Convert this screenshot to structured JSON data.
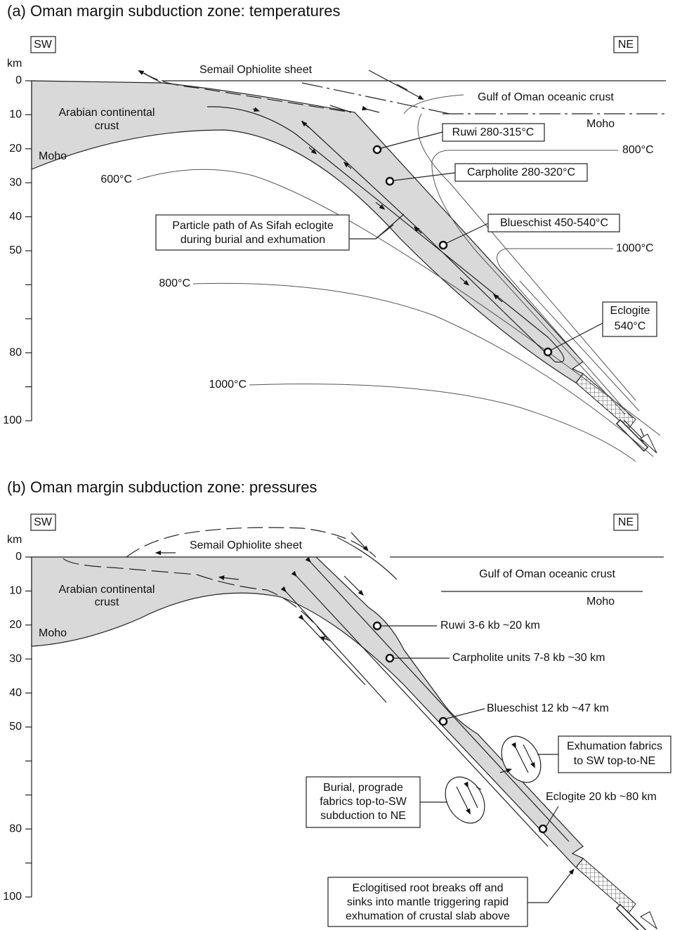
{
  "panel_a": {
    "title": "(a)  Oman margin subduction zone: temperatures",
    "sw": "SW",
    "ne": "NE",
    "unit": "km",
    "depth_labels": [
      "0",
      "10",
      "20",
      "30",
      "40",
      "50",
      "80",
      "100"
    ],
    "ophiolite": "Semail Ophiolite sheet",
    "oceanic_crust": "Gulf of Oman oceanic crust",
    "moho_right": "Moho",
    "continental_crust": [
      "Arabian continental",
      "crust"
    ],
    "moho_left": "Moho",
    "isotherms": {
      "t600": "600°C",
      "t800_right": "800°C",
      "t1000_right": "1000°C",
      "t800_left": "800°C",
      "t1000_bottom": "1000°C"
    },
    "ruwi": "Ruwi 280-315°C",
    "carpholite": "Carpholite 280-320°C",
    "blueschist": "Blueschist 450-540°C",
    "eclogite": [
      "Eclogite",
      "540°C"
    ],
    "particle_path": [
      "Particle path of As Sifah eclogite",
      "during burial and exhumation"
    ]
  },
  "panel_b": {
    "title": "(b)  Oman margin subduction zone: pressures",
    "sw": "SW",
    "ne": "NE",
    "unit": "km",
    "depth_labels": [
      "0",
      "10",
      "20",
      "30",
      "40",
      "50",
      "80",
      "100"
    ],
    "ophiolite": "Semail Ophiolite sheet",
    "oceanic_crust": "Gulf of Oman oceanic crust",
    "moho_right": "Moho",
    "continental_crust": [
      "Arabian continental",
      "crust"
    ],
    "moho_left": "Moho",
    "ruwi": "Ruwi 3-6 kb ~20 km",
    "carpholite": "Carpholite units 7-8 kb ~30 km",
    "blueschist": "Blueschist 12 kb ~47 km",
    "eclogite": "Eclogite  20 kb ~80 km",
    "exhumation": [
      "Exhumation fabrics",
      "to SW top-to-NE"
    ],
    "burial": [
      "Burial, prograde",
      "fabrics top-to-SW",
      "subduction to NE"
    ],
    "root": [
      "Eclogitised root breaks off and",
      "sinks into mantle triggering rapid",
      "exhumation of crustal slab above"
    ]
  }
}
